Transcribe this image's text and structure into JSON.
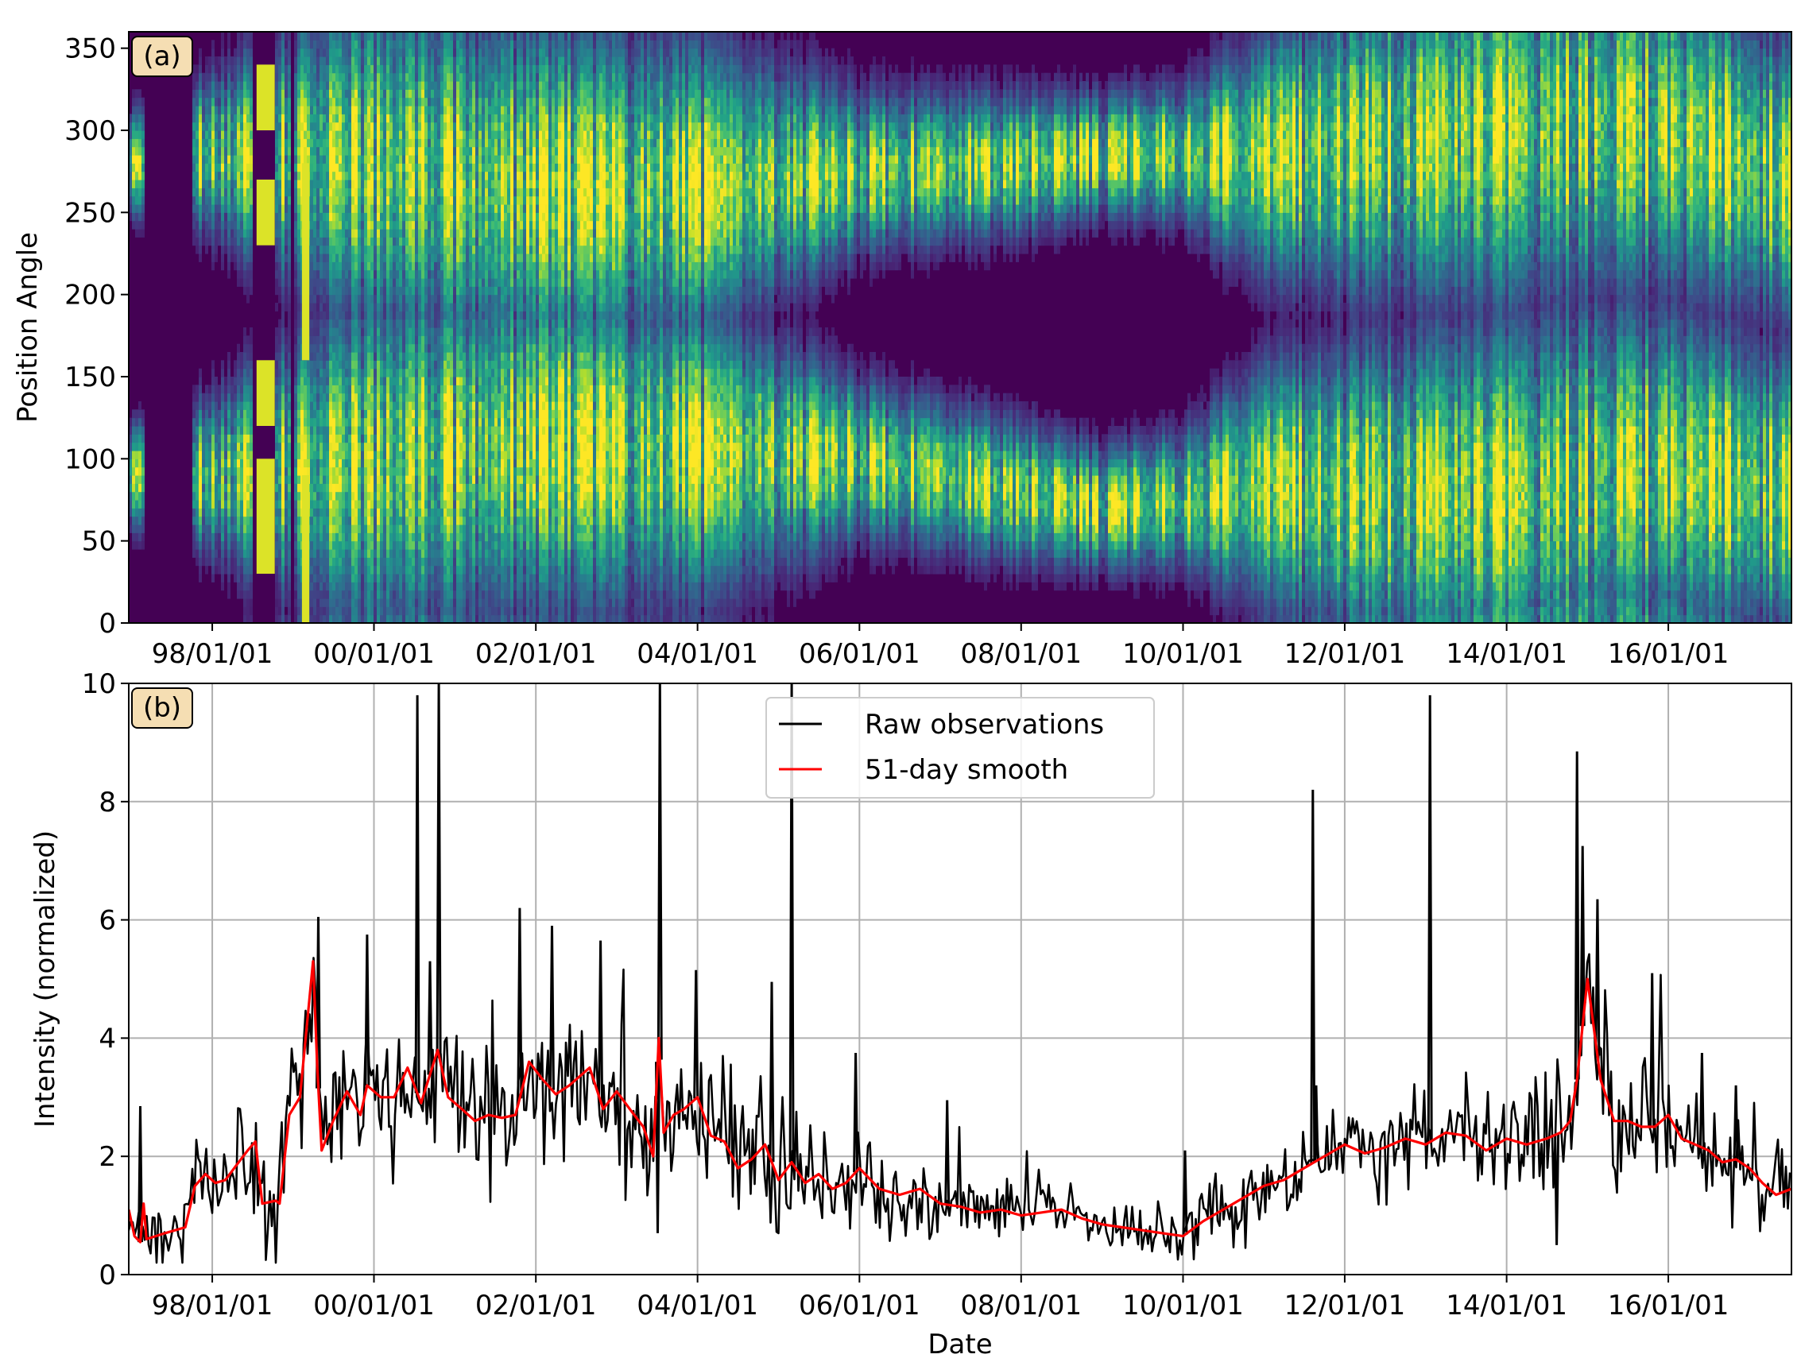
{
  "chart_data": [
    {
      "type": "heatmap",
      "panel_label": "(a)",
      "xlabel": "",
      "ylabel": "Position Angle",
      "x_start": "1996-12-20",
      "x_end": "2017-07-10",
      "xticks": [
        "98/01/01",
        "00/01/01",
        "02/01/01",
        "04/01/01",
        "06/01/01",
        "08/01/01",
        "10/01/01",
        "12/01/01",
        "14/01/01",
        "16/01/01"
      ],
      "xtick_dates": [
        "1998-01-01",
        "2000-01-01",
        "2002-01-01",
        "2004-01-01",
        "2006-01-01",
        "2008-01-01",
        "2010-01-01",
        "2012-01-01",
        "2014-01-01",
        "2016-01-01"
      ],
      "ylim": [
        0,
        360
      ],
      "yticks": [
        0,
        50,
        100,
        150,
        200,
        250,
        300,
        350
      ],
      "colormap": "viridis",
      "band_centers_deg": {
        "dates": [
          "1996-12-20",
          "1998-01-01",
          "2000-01-01",
          "2002-01-01",
          "2004-01-01",
          "2006-01-01",
          "2008-01-01",
          "2009-01-01",
          "2010-01-01",
          "2011-01-01",
          "2012-01-01",
          "2014-01-01",
          "2015-01-01",
          "2016-01-01",
          "2017-07-10"
        ],
        "north": [
          280,
          285,
          280,
          265,
          265,
          275,
          280,
          285,
          285,
          285,
          290,
          300,
          305,
          300,
          270
        ],
        "south": [
          90,
          90,
          100,
          110,
          105,
          100,
          80,
          70,
          75,
          85,
          80,
          80,
          90,
          95,
          80
        ]
      },
      "band_widths_deg": {
        "dates": [
          "1996-12-20",
          "1998-01-01",
          "2000-01-01",
          "2002-01-01",
          "2004-01-01",
          "2006-01-01",
          "2008-01-01",
          "2009-01-01",
          "2010-01-01",
          "2011-01-01",
          "2012-01-01",
          "2014-01-01",
          "2015-01-01",
          "2016-01-01",
          "2017-07-10"
        ],
        "width": [
          25,
          40,
          90,
          85,
          75,
          40,
          35,
          30,
          35,
          60,
          75,
          90,
          90,
          80,
          70
        ]
      },
      "gaps": [
        [
          "1997-03-01",
          "1997-10-01"
        ],
        [
          "1998-07-01",
          "1998-10-15"
        ],
        [
          "1998-12-20",
          "1999-01-10"
        ]
      ],
      "filled_blocks": [
        {
          "start": "1998-07-20",
          "end": "1998-10-10",
          "angles": [
            [
              30,
              100
            ],
            [
              120,
              160
            ],
            [
              230,
              270
            ],
            [
              300,
              340
            ]
          ]
        },
        {
          "start": "1999-02-10",
          "end": "1999-03-15",
          "angles": [
            [
              0,
              90
            ],
            [
              160,
              280
            ]
          ]
        }
      ]
    },
    {
      "type": "line",
      "panel_label": "(b)",
      "xlabel": "Date",
      "ylabel": "Intensity (normalized)",
      "x_start": "1996-12-20",
      "x_end": "2017-07-10",
      "xticks": [
        "98/01/01",
        "00/01/01",
        "02/01/01",
        "04/01/01",
        "06/01/01",
        "08/01/01",
        "10/01/01",
        "12/01/01",
        "14/01/01",
        "16/01/01"
      ],
      "xtick_dates": [
        "1998-01-01",
        "2000-01-01",
        "2002-01-01",
        "2004-01-01",
        "2006-01-01",
        "2008-01-01",
        "2010-01-01",
        "2012-01-01",
        "2014-01-01",
        "2016-01-01"
      ],
      "ylim": [
        0,
        10
      ],
      "yticks": [
        0,
        2,
        4,
        6,
        8,
        10
      ],
      "grid": true,
      "legend_position": "top-center",
      "series": [
        {
          "name": "Raw observations",
          "color": "#000000",
          "description": "daily raw values scattered about the 51-day smooth",
          "scatter_amplitude": {
            "dates": [
              "1996-12-20",
              "1999-06-01",
              "2004-01-01",
              "2006-01-01",
              "2008-01-01",
              "2010-01-01",
              "2012-01-01",
              "2015-01-01",
              "2017-07-10"
            ],
            "amp": [
              0.35,
              0.6,
              0.55,
              0.4,
              0.25,
              0.25,
              0.35,
              0.55,
              0.4
            ]
          },
          "spikes": [
            {
              "date": "1997-02-10",
              "value": 2.85
            },
            {
              "date": "1999-04-25",
              "value": 6.05
            },
            {
              "date": "1999-12-01",
              "value": 5.75
            },
            {
              "date": "2000-07-15",
              "value": 9.8
            },
            {
              "date": "2000-10-20",
              "value": 10.0
            },
            {
              "date": "2000-09-10",
              "value": 5.3
            },
            {
              "date": "2001-10-20",
              "value": 6.2
            },
            {
              "date": "2002-03-15",
              "value": 5.9
            },
            {
              "date": "2002-10-20",
              "value": 5.65
            },
            {
              "date": "2003-07-15",
              "value": 10.0
            },
            {
              "date": "2003-07-05",
              "value": 0.7
            },
            {
              "date": "2003-12-25",
              "value": 5.15
            },
            {
              "date": "2004-12-01",
              "value": 4.95
            },
            {
              "date": "2005-03-01",
              "value": 10.0
            },
            {
              "date": "2005-12-15",
              "value": 3.75
            },
            {
              "date": "2007-02-01",
              "value": 2.95
            },
            {
              "date": "2010-01-10",
              "value": 2.1
            },
            {
              "date": "2011-08-10",
              "value": 8.2
            },
            {
              "date": "2011-08-25",
              "value": 3.2
            },
            {
              "date": "2013-01-20",
              "value": 9.8
            },
            {
              "date": "2014-08-15",
              "value": 0.5
            },
            {
              "date": "2014-11-15",
              "value": 8.85
            },
            {
              "date": "2014-12-10",
              "value": 7.25
            },
            {
              "date": "2015-02-15",
              "value": 6.35
            },
            {
              "date": "2015-10-20",
              "value": 5.1
            },
            {
              "date": "2016-06-01",
              "value": 3.75
            },
            {
              "date": "2016-11-01",
              "value": 3.2
            }
          ]
        },
        {
          "name": "51-day smooth",
          "color": "#ff0000",
          "x": [
            "1996-12-20",
            "1997-01-15",
            "1997-02-10",
            "1997-02-25",
            "1997-03-10",
            "1997-06-01",
            "1997-09-01",
            "1997-10-15",
            "1997-12-01",
            "1998-01-15",
            "1998-03-01",
            "1998-04-20",
            "1998-06-10",
            "1998-07-15",
            "1998-08-15",
            "1998-10-15",
            "1998-11-01",
            "1998-12-15",
            "1999-02-01",
            "1999-04-01",
            "1999-04-20",
            "1999-05-10",
            "1999-07-01",
            "1999-09-01",
            "1999-11-01",
            "1999-12-01",
            "2000-02-01",
            "2000-04-01",
            "2000-06-01",
            "2000-08-01",
            "2000-10-15",
            "2000-12-01",
            "2001-02-01",
            "2001-04-01",
            "2001-06-01",
            "2001-08-01",
            "2001-10-01",
            "2001-12-01",
            "2002-02-01",
            "2002-04-01",
            "2002-06-01",
            "2002-09-01",
            "2002-11-01",
            "2003-01-01",
            "2003-03-01",
            "2003-05-01",
            "2003-06-15",
            "2003-07-10",
            "2003-08-01",
            "2003-09-15",
            "2003-11-01",
            "2004-01-01",
            "2004-03-01",
            "2004-05-01",
            "2004-07-01",
            "2004-09-01",
            "2004-11-01",
            "2005-01-01",
            "2005-03-01",
            "2005-05-01",
            "2005-07-01",
            "2005-09-01",
            "2005-11-01",
            "2006-01-01",
            "2006-04-01",
            "2006-07-01",
            "2006-10-01",
            "2007-01-01",
            "2007-04-01",
            "2007-07-01",
            "2007-10-01",
            "2008-01-01",
            "2008-04-01",
            "2008-07-01",
            "2008-10-01",
            "2009-01-01",
            "2009-04-01",
            "2009-07-01",
            "2009-10-01",
            "2010-01-01",
            "2010-04-01",
            "2010-07-01",
            "2010-10-01",
            "2011-01-01",
            "2011-04-01",
            "2011-07-01",
            "2011-10-01",
            "2012-01-01",
            "2012-04-01",
            "2012-07-01",
            "2012-10-01",
            "2013-01-01",
            "2013-04-01",
            "2013-07-01",
            "2013-10-01",
            "2014-01-01",
            "2014-04-01",
            "2014-07-01",
            "2014-09-01",
            "2014-10-15",
            "2014-11-15",
            "2015-01-01",
            "2015-03-01",
            "2015-05-01",
            "2015-07-01",
            "2015-09-01",
            "2015-11-01",
            "2016-01-01",
            "2016-03-01",
            "2016-05-01",
            "2016-07-01",
            "2016-09-01",
            "2016-11-01",
            "2017-01-01",
            "2017-03-01",
            "2017-05-01",
            "2017-07-10"
          ],
          "values": [
            1.1,
            0.65,
            0.55,
            1.2,
            0.6,
            0.7,
            0.8,
            1.5,
            1.7,
            1.55,
            1.6,
            1.85,
            2.1,
            2.25,
            1.2,
            1.25,
            1.2,
            2.7,
            3.0,
            5.3,
            3.5,
            2.1,
            2.6,
            3.1,
            2.7,
            3.2,
            3.0,
            3.0,
            3.5,
            2.9,
            3.8,
            3.0,
            2.8,
            2.6,
            2.7,
            2.65,
            2.7,
            3.6,
            3.3,
            3.05,
            3.2,
            3.5,
            2.8,
            3.1,
            2.8,
            2.5,
            2.0,
            4.0,
            2.4,
            2.7,
            2.8,
            3.0,
            2.35,
            2.25,
            1.8,
            1.95,
            2.2,
            1.6,
            1.9,
            1.55,
            1.7,
            1.45,
            1.55,
            1.8,
            1.45,
            1.35,
            1.45,
            1.2,
            1.15,
            1.05,
            1.1,
            1.0,
            1.05,
            1.1,
            0.95,
            0.85,
            0.8,
            0.75,
            0.7,
            0.65,
            0.9,
            1.1,
            1.3,
            1.5,
            1.6,
            1.8,
            2.0,
            2.2,
            2.05,
            2.15,
            2.3,
            2.2,
            2.4,
            2.35,
            2.1,
            2.3,
            2.2,
            2.3,
            2.4,
            2.6,
            3.3,
            5.0,
            3.3,
            2.6,
            2.6,
            2.5,
            2.5,
            2.7,
            2.3,
            2.2,
            2.1,
            1.9,
            1.95,
            1.8,
            1.55,
            1.35,
            1.45
          ]
        }
      ]
    }
  ]
}
